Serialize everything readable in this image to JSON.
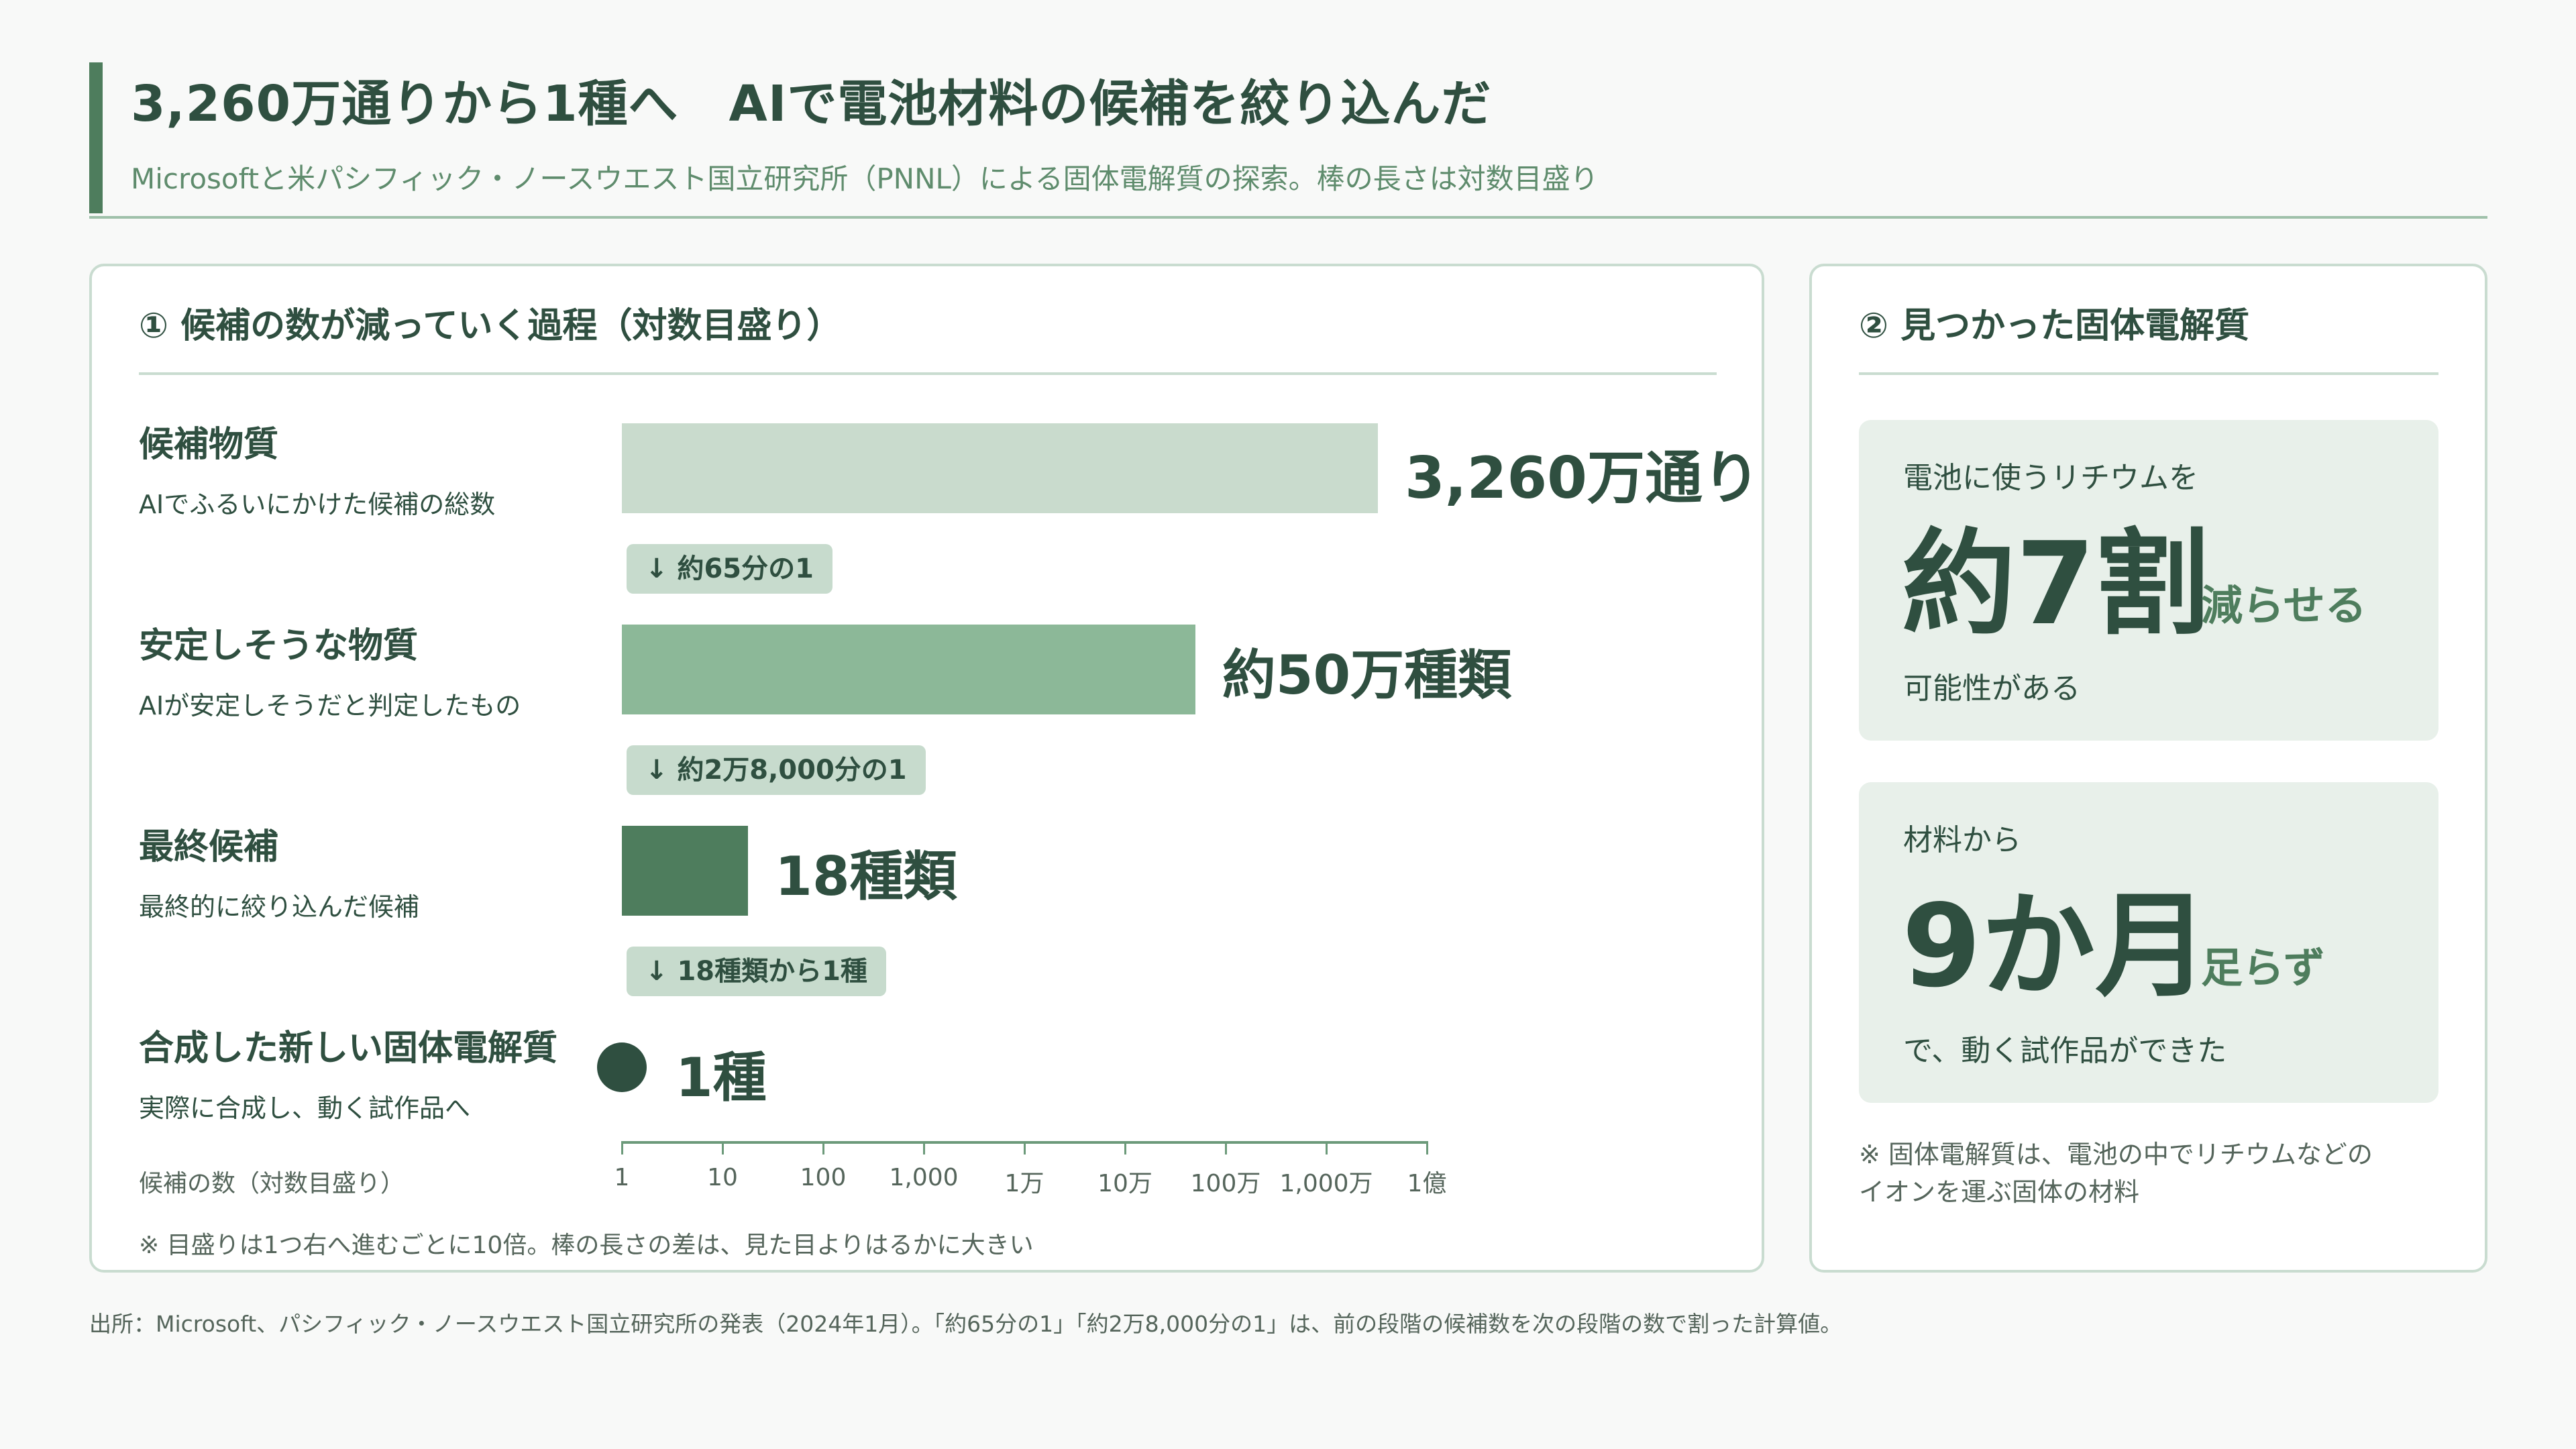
{
  "header": {
    "title": "3,260万通りから1種へ　AIで電池材料の候補を絞り込んだ",
    "subtitle": "Microsoftと米パシフィック・ノースウエスト国立研究所（PNNL）による固体電解質の探索。棒の長さは対数目盛り"
  },
  "left_panel": {
    "title": "① 候補の数が減っていく過程（対数目盛り）",
    "rows": [
      {
        "label": "候補物質",
        "sub": "AIでふるいにかけた候補の総数",
        "value_label": "3,260万通り"
      },
      {
        "label": "安定しそうな物質",
        "sub": "AIが安定しそうだと判定したもの",
        "value_label": "約50万種類"
      },
      {
        "label": "最終候補",
        "sub": "最終的に絞り込んだ候補",
        "value_label": "18種類"
      },
      {
        "label": "合成した新しい固体電解質",
        "sub": "実際に合成し、動く試作品へ",
        "value_label": "1種"
      }
    ],
    "ratios": [
      "↓ 約65分の1",
      "↓ 約2万8,000分の1",
      "↓ 18種類から1種"
    ],
    "axis_title": "候補の数（対数目盛り）",
    "note": "※ 目盛りは1つ右へ進むごとに10倍。棒の長さの差は、見た目よりはるかに大きい"
  },
  "chart_data": {
    "type": "bar",
    "orientation": "horizontal",
    "scale": "log10",
    "categories": [
      "候補物質",
      "安定しそうな物質",
      "最終候補",
      "合成した新しい固体電解質"
    ],
    "values": [
      32600000,
      500000,
      18,
      1
    ],
    "xlim": [
      1,
      100000000
    ],
    "x_ticks": [
      1,
      10,
      100,
      1000,
      10000,
      100000,
      1000000,
      10000000,
      100000000
    ],
    "x_tick_labels": [
      "1",
      "10",
      "100",
      "1,000",
      "1万",
      "10万",
      "100万",
      "1,000万",
      "1億"
    ],
    "xlabel": "候補の数（対数目盛り）",
    "colors": [
      "#c9dbcd",
      "#8cb898",
      "#4e7d5d",
      "#2f4f40"
    ]
  },
  "right_panel": {
    "title": "② 見つかった固体電解質",
    "card1": {
      "pre": "電池に使うリチウムを",
      "big": "約7割",
      "mid": "減らせる",
      "post": "可能性がある"
    },
    "card2": {
      "pre": "材料から",
      "big": "9か月",
      "mid": "足らず",
      "post": "で、動く試作品ができた"
    },
    "note_lines": [
      "※ 固体電解質は、電池の中でリチウムなどの",
      "イオンを運ぶ固体の材料"
    ]
  },
  "source": "出所：Microsoft、パシフィック・ノースウエスト国立研究所の発表（2024年1月）。「約65分の1」「約2万8,000分の1」は、前の段階の候補数を次の段階の数で割った計算値。"
}
